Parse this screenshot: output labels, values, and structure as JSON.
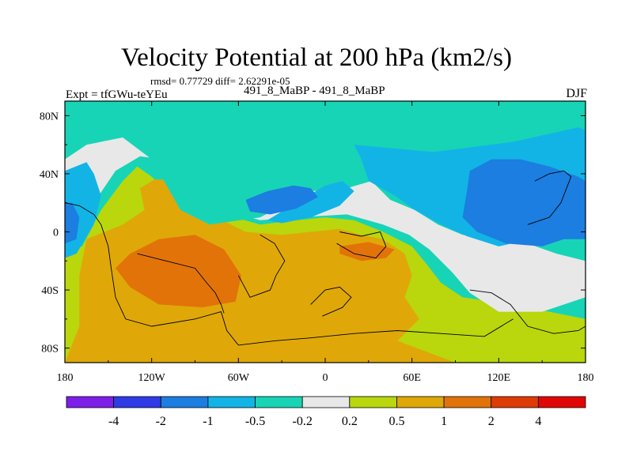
{
  "title": "Velocity Potential at 200 hPa (km2/s)",
  "stats": "rmsd= 0.77729 diff= 2.62291e-05",
  "left_label": "Expt = tfGWu-teYEu",
  "center_label": "491_8_MaBP - 491_8_MaBP",
  "right_label": "DJF",
  "chart_data": {
    "type": "heatmap",
    "subtype": "filled-contour map (lon-lat)",
    "title": "Velocity Potential at 200 hPa (km2/s)",
    "units": "km2/s",
    "x_range": [
      -180,
      180
    ],
    "y_range": [
      -90,
      90
    ],
    "x_ticks": [
      {
        "value": -180,
        "label": "180"
      },
      {
        "value": -120,
        "label": "120W"
      },
      {
        "value": -60,
        "label": "60W"
      },
      {
        "value": 0,
        "label": "0"
      },
      {
        "value": 60,
        "label": "60E"
      },
      {
        "value": 120,
        "label": "120E"
      },
      {
        "value": 180,
        "label": "180"
      }
    ],
    "y_ticks": [
      {
        "value": 80,
        "label": "80N"
      },
      {
        "value": 40,
        "label": "40N"
      },
      {
        "value": 0,
        "label": "0"
      },
      {
        "value": -40,
        "label": "40S"
      },
      {
        "value": -80,
        "label": "80S"
      }
    ],
    "levels": [
      "-4",
      "-2",
      "-1",
      "-0.5",
      "-0.2",
      "0.2",
      "0.5",
      "1",
      "2",
      "4"
    ],
    "colors": [
      "#7d1fe8",
      "#2f3be6",
      "#1b7ee0",
      "#12b4e6",
      "#18d4b6",
      "#e8e8e8",
      "#b9d70c",
      "#dfa808",
      "#e17308",
      "#df3b07",
      "#e10606"
    ],
    "regions": [
      {
        "level": "0.2 to 0.5",
        "points": [
          [
            -180,
            -90
          ],
          [
            180,
            -90
          ],
          [
            180,
            -60
          ],
          [
            155,
            -55
          ],
          [
            130,
            -50
          ],
          [
            95,
            -45
          ],
          [
            80,
            -35
          ],
          [
            70,
            -22
          ],
          [
            60,
            -10
          ],
          [
            40,
            0
          ],
          [
            20,
            8
          ],
          [
            0,
            10
          ],
          [
            -20,
            8
          ],
          [
            -45,
            5
          ],
          [
            -70,
            12
          ],
          [
            -90,
            18
          ],
          [
            -110,
            28
          ],
          [
            -120,
            38
          ],
          [
            -130,
            45
          ],
          [
            -140,
            35
          ],
          [
            -155,
            15
          ],
          [
            -168,
            -10
          ],
          [
            -180,
            -12
          ]
        ]
      },
      {
        "level": "0.5 to 1",
        "points": [
          [
            -180,
            -90
          ],
          [
            90,
            -90
          ],
          [
            50,
            -75
          ],
          [
            65,
            -60
          ],
          [
            55,
            -45
          ],
          [
            60,
            -30
          ],
          [
            55,
            -15
          ],
          [
            40,
            -5
          ],
          [
            25,
            -2
          ],
          [
            10,
            2
          ],
          [
            -10,
            0
          ],
          [
            -30,
            -2
          ],
          [
            -55,
            0
          ],
          [
            -75,
            10
          ],
          [
            -95,
            18
          ],
          [
            -105,
            30
          ],
          [
            -110,
            36
          ],
          [
            -118,
            36
          ],
          [
            -128,
            30
          ],
          [
            -125,
            15
          ],
          [
            -140,
            5
          ],
          [
            -165,
            -5
          ],
          [
            -170,
            -30
          ],
          [
            -170,
            -65
          ],
          [
            -180,
            -90
          ]
        ]
      },
      {
        "level": "1 to 2",
        "points": [
          [
            -135,
            -15
          ],
          [
            -115,
            -5
          ],
          [
            -90,
            -2
          ],
          [
            -70,
            -12
          ],
          [
            -58,
            -30
          ],
          [
            -62,
            -48
          ],
          [
            -85,
            -52
          ],
          [
            -115,
            -50
          ],
          [
            -135,
            -38
          ],
          [
            -145,
            -25
          ]
        ]
      },
      {
        "level": "1 to 2",
        "points": [
          [
            10,
            -10
          ],
          [
            30,
            -7
          ],
          [
            48,
            -12
          ],
          [
            42,
            -18
          ],
          [
            25,
            -20
          ],
          [
            10,
            -15
          ]
        ]
      },
      {
        "level": "-0.2 to 0.2",
        "points": [
          [
            -180,
            57
          ],
          [
            -165,
            68
          ],
          [
            -135,
            72
          ],
          [
            -115,
            68
          ],
          [
            -100,
            58
          ],
          [
            -75,
            58
          ],
          [
            -45,
            60
          ],
          [
            -10,
            55
          ],
          [
            20,
            52
          ],
          [
            40,
            45
          ],
          [
            60,
            25
          ],
          [
            80,
            12
          ],
          [
            110,
            0
          ],
          [
            140,
            -8
          ],
          [
            160,
            -15
          ],
          [
            180,
            -20
          ],
          [
            180,
            -45
          ],
          [
            150,
            -55
          ],
          [
            120,
            -55
          ],
          [
            100,
            -42
          ],
          [
            88,
            -28
          ],
          [
            72,
            -12
          ],
          [
            58,
            -2
          ],
          [
            40,
            5
          ],
          [
            15,
            12
          ],
          [
            -20,
            10
          ],
          [
            -45,
            8
          ],
          [
            -70,
            15
          ],
          [
            -95,
            30
          ],
          [
            -112,
            50
          ],
          [
            -128,
            52
          ],
          [
            -145,
            42
          ],
          [
            -160,
            20
          ],
          [
            -175,
            0
          ],
          [
            -180,
            -5
          ]
        ]
      },
      {
        "level": "-0.5 to -0.2",
        "points": [
          [
            -180,
            90
          ],
          [
            180,
            90
          ],
          [
            180,
            -20
          ],
          [
            150,
            -10
          ],
          [
            120,
            -5
          ],
          [
            95,
            -2
          ],
          [
            78,
            5
          ],
          [
            62,
            15
          ],
          [
            45,
            22
          ],
          [
            32,
            35
          ],
          [
            15,
            30
          ],
          [
            -10,
            28
          ],
          [
            -45,
            10
          ],
          [
            -80,
            5
          ],
          [
            -100,
            15
          ],
          [
            -120,
            50
          ],
          [
            -140,
            65
          ],
          [
            -165,
            60
          ],
          [
            -180,
            50
          ]
        ]
      },
      {
        "level": "-1 to -0.5",
        "points": [
          [
            20,
            60
          ],
          [
            75,
            55
          ],
          [
            130,
            62
          ],
          [
            175,
            72
          ],
          [
            180,
            70
          ],
          [
            180,
            0
          ],
          [
            155,
            -2
          ],
          [
            120,
            -10
          ],
          [
            98,
            -3
          ],
          [
            80,
            5
          ],
          [
            62,
            15
          ],
          [
            48,
            25
          ],
          [
            30,
            35
          ],
          [
            25,
            50
          ]
        ]
      },
      {
        "level": "-1 to -0.5",
        "points": [
          [
            -180,
            42
          ],
          [
            -165,
            48
          ],
          [
            -160,
            40
          ],
          [
            -155,
            25
          ],
          [
            -160,
            5
          ],
          [
            -172,
            -15
          ],
          [
            -180,
            -18
          ]
        ]
      },
      {
        "level": "-1 to -0.5",
        "points": [
          [
            -40,
            8
          ],
          [
            -20,
            20
          ],
          [
            0,
            32
          ],
          [
            12,
            35
          ],
          [
            20,
            28
          ],
          [
            10,
            18
          ],
          [
            -10,
            10
          ],
          [
            -30,
            6
          ]
        ]
      },
      {
        "level": "-2 to -1",
        "points": [
          [
            100,
            42
          ],
          [
            115,
            50
          ],
          [
            135,
            50
          ],
          [
            155,
            45
          ],
          [
            175,
            38
          ],
          [
            180,
            35
          ],
          [
            180,
            -5
          ],
          [
            165,
            -5
          ],
          [
            150,
            -10
          ],
          [
            125,
            -8
          ],
          [
            105,
            0
          ],
          [
            95,
            10
          ],
          [
            98,
            28
          ]
        ]
      },
      {
        "level": "-2 to -1",
        "points": [
          [
            -180,
            20
          ],
          [
            -175,
            20
          ],
          [
            -170,
            10
          ],
          [
            -172,
            -5
          ],
          [
            -180,
            -8
          ]
        ]
      },
      {
        "level": "-2 to -1",
        "points": [
          [
            -55,
            22
          ],
          [
            -40,
            28
          ],
          [
            -22,
            32
          ],
          [
            -10,
            30
          ],
          [
            -5,
            24
          ],
          [
            -20,
            16
          ],
          [
            -38,
            12
          ],
          [
            -52,
            14
          ]
        ]
      }
    ],
    "coastlines": [
      [
        [
          -180,
          20
        ],
        [
          -170,
          18
        ],
        [
          -160,
          12
        ],
        [
          -155,
          5
        ],
        [
          -150,
          -10
        ],
        [
          -148,
          -25
        ],
        [
          -145,
          -45
        ],
        [
          -138,
          -60
        ],
        [
          -120,
          -65
        ],
        [
          -90,
          -60
        ],
        [
          -72,
          -55
        ],
        [
          -68,
          -68
        ],
        [
          -60,
          -78
        ],
        [
          -35,
          -75
        ],
        [
          -10,
          -73
        ],
        [
          20,
          -70
        ],
        [
          50,
          -68
        ],
        [
          80,
          -70
        ],
        [
          110,
          -72
        ],
        [
          130,
          -60
        ]
      ],
      [
        [
          -130,
          -15
        ],
        [
          -110,
          -20
        ],
        [
          -90,
          -25
        ],
        [
          -82,
          -35
        ],
        [
          -76,
          -42
        ],
        [
          -72,
          -50
        ],
        [
          -70,
          -56
        ]
      ],
      [
        [
          -45,
          -2
        ],
        [
          -35,
          -8
        ],
        [
          -28,
          -20
        ],
        [
          -34,
          -30
        ],
        [
          -38,
          -40
        ],
        [
          -52,
          -45
        ],
        [
          -60,
          -30
        ]
      ],
      [
        [
          -10,
          -50
        ],
        [
          0,
          -40
        ],
        [
          10,
          -38
        ],
        [
          18,
          -45
        ],
        [
          12,
          -52
        ],
        [
          -2,
          -58
        ]
      ],
      [
        [
          10,
          0
        ],
        [
          25,
          -3
        ],
        [
          38,
          0
        ],
        [
          42,
          -10
        ],
        [
          35,
          -18
        ],
        [
          20,
          -15
        ],
        [
          8,
          -8
        ]
      ],
      [
        [
          100,
          -40
        ],
        [
          115,
          -42
        ],
        [
          128,
          -50
        ],
        [
          140,
          -65
        ],
        [
          158,
          -70
        ],
        [
          175,
          -68
        ],
        [
          180,
          -65
        ]
      ],
      [
        [
          145,
          35
        ],
        [
          155,
          40
        ],
        [
          165,
          42
        ],
        [
          170,
          38
        ],
        [
          163,
          20
        ],
        [
          155,
          10
        ],
        [
          140,
          5
        ]
      ]
    ]
  },
  "colorbar": {
    "labels": [
      "-4",
      "-2",
      "-1",
      "-0.5",
      "-0.2",
      "0.2",
      "0.5",
      "1",
      "2",
      "4"
    ]
  }
}
